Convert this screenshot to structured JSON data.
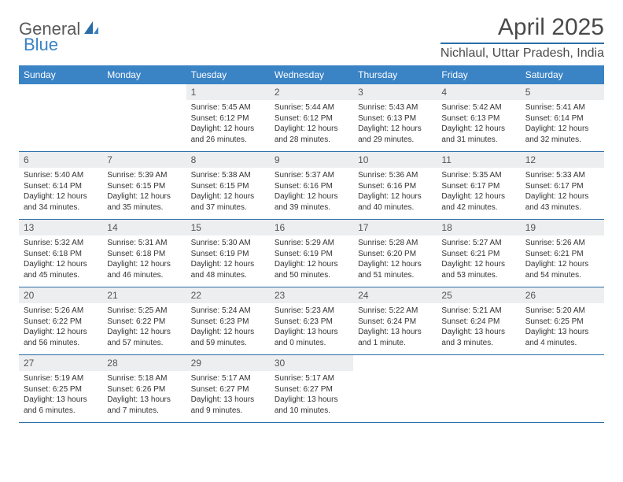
{
  "logo": {
    "text1": "General",
    "text2": "Blue"
  },
  "title": "April 2025",
  "location": "Nichlaul, Uttar Pradesh, India",
  "colors": {
    "header_bg": "#3a83c5",
    "header_text": "#ffffff",
    "daynum_bg": "#eceeef",
    "border": "#2a6da8",
    "text": "#333333"
  },
  "weekdays": [
    "Sunday",
    "Monday",
    "Tuesday",
    "Wednesday",
    "Thursday",
    "Friday",
    "Saturday"
  ],
  "weeks": [
    [
      null,
      null,
      {
        "n": "1",
        "sr": "Sunrise: 5:45 AM",
        "ss": "Sunset: 6:12 PM",
        "dl": "Daylight: 12 hours and 26 minutes."
      },
      {
        "n": "2",
        "sr": "Sunrise: 5:44 AM",
        "ss": "Sunset: 6:12 PM",
        "dl": "Daylight: 12 hours and 28 minutes."
      },
      {
        "n": "3",
        "sr": "Sunrise: 5:43 AM",
        "ss": "Sunset: 6:13 PM",
        "dl": "Daylight: 12 hours and 29 minutes."
      },
      {
        "n": "4",
        "sr": "Sunrise: 5:42 AM",
        "ss": "Sunset: 6:13 PM",
        "dl": "Daylight: 12 hours and 31 minutes."
      },
      {
        "n": "5",
        "sr": "Sunrise: 5:41 AM",
        "ss": "Sunset: 6:14 PM",
        "dl": "Daylight: 12 hours and 32 minutes."
      }
    ],
    [
      {
        "n": "6",
        "sr": "Sunrise: 5:40 AM",
        "ss": "Sunset: 6:14 PM",
        "dl": "Daylight: 12 hours and 34 minutes."
      },
      {
        "n": "7",
        "sr": "Sunrise: 5:39 AM",
        "ss": "Sunset: 6:15 PM",
        "dl": "Daylight: 12 hours and 35 minutes."
      },
      {
        "n": "8",
        "sr": "Sunrise: 5:38 AM",
        "ss": "Sunset: 6:15 PM",
        "dl": "Daylight: 12 hours and 37 minutes."
      },
      {
        "n": "9",
        "sr": "Sunrise: 5:37 AM",
        "ss": "Sunset: 6:16 PM",
        "dl": "Daylight: 12 hours and 39 minutes."
      },
      {
        "n": "10",
        "sr": "Sunrise: 5:36 AM",
        "ss": "Sunset: 6:16 PM",
        "dl": "Daylight: 12 hours and 40 minutes."
      },
      {
        "n": "11",
        "sr": "Sunrise: 5:35 AM",
        "ss": "Sunset: 6:17 PM",
        "dl": "Daylight: 12 hours and 42 minutes."
      },
      {
        "n": "12",
        "sr": "Sunrise: 5:33 AM",
        "ss": "Sunset: 6:17 PM",
        "dl": "Daylight: 12 hours and 43 minutes."
      }
    ],
    [
      {
        "n": "13",
        "sr": "Sunrise: 5:32 AM",
        "ss": "Sunset: 6:18 PM",
        "dl": "Daylight: 12 hours and 45 minutes."
      },
      {
        "n": "14",
        "sr": "Sunrise: 5:31 AM",
        "ss": "Sunset: 6:18 PM",
        "dl": "Daylight: 12 hours and 46 minutes."
      },
      {
        "n": "15",
        "sr": "Sunrise: 5:30 AM",
        "ss": "Sunset: 6:19 PM",
        "dl": "Daylight: 12 hours and 48 minutes."
      },
      {
        "n": "16",
        "sr": "Sunrise: 5:29 AM",
        "ss": "Sunset: 6:19 PM",
        "dl": "Daylight: 12 hours and 50 minutes."
      },
      {
        "n": "17",
        "sr": "Sunrise: 5:28 AM",
        "ss": "Sunset: 6:20 PM",
        "dl": "Daylight: 12 hours and 51 minutes."
      },
      {
        "n": "18",
        "sr": "Sunrise: 5:27 AM",
        "ss": "Sunset: 6:21 PM",
        "dl": "Daylight: 12 hours and 53 minutes."
      },
      {
        "n": "19",
        "sr": "Sunrise: 5:26 AM",
        "ss": "Sunset: 6:21 PM",
        "dl": "Daylight: 12 hours and 54 minutes."
      }
    ],
    [
      {
        "n": "20",
        "sr": "Sunrise: 5:26 AM",
        "ss": "Sunset: 6:22 PM",
        "dl": "Daylight: 12 hours and 56 minutes."
      },
      {
        "n": "21",
        "sr": "Sunrise: 5:25 AM",
        "ss": "Sunset: 6:22 PM",
        "dl": "Daylight: 12 hours and 57 minutes."
      },
      {
        "n": "22",
        "sr": "Sunrise: 5:24 AM",
        "ss": "Sunset: 6:23 PM",
        "dl": "Daylight: 12 hours and 59 minutes."
      },
      {
        "n": "23",
        "sr": "Sunrise: 5:23 AM",
        "ss": "Sunset: 6:23 PM",
        "dl": "Daylight: 13 hours and 0 minutes."
      },
      {
        "n": "24",
        "sr": "Sunrise: 5:22 AM",
        "ss": "Sunset: 6:24 PM",
        "dl": "Daylight: 13 hours and 1 minute."
      },
      {
        "n": "25",
        "sr": "Sunrise: 5:21 AM",
        "ss": "Sunset: 6:24 PM",
        "dl": "Daylight: 13 hours and 3 minutes."
      },
      {
        "n": "26",
        "sr": "Sunrise: 5:20 AM",
        "ss": "Sunset: 6:25 PM",
        "dl": "Daylight: 13 hours and 4 minutes."
      }
    ],
    [
      {
        "n": "27",
        "sr": "Sunrise: 5:19 AM",
        "ss": "Sunset: 6:25 PM",
        "dl": "Daylight: 13 hours and 6 minutes."
      },
      {
        "n": "28",
        "sr": "Sunrise: 5:18 AM",
        "ss": "Sunset: 6:26 PM",
        "dl": "Daylight: 13 hours and 7 minutes."
      },
      {
        "n": "29",
        "sr": "Sunrise: 5:17 AM",
        "ss": "Sunset: 6:27 PM",
        "dl": "Daylight: 13 hours and 9 minutes."
      },
      {
        "n": "30",
        "sr": "Sunrise: 5:17 AM",
        "ss": "Sunset: 6:27 PM",
        "dl": "Daylight: 13 hours and 10 minutes."
      },
      null,
      null,
      null
    ]
  ]
}
